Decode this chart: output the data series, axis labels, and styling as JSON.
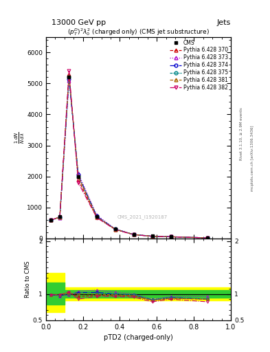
{
  "title_top": "13000 GeV pp",
  "title_right": "Jets",
  "plot_title": "$(p_T^D)^2\\lambda_0^2$ (charged only) (CMS jet substructure)",
  "xlabel": "pTD2 (charged-only)",
  "watermark": "CMS_2021_I1920187",
  "right_label1": "Rivet 3.1.10, ≥ 2.9M events",
  "right_label2": "mcplots.cern.ch [arXiv:1306.3436]",
  "x_data": [
    0.025,
    0.075,
    0.125,
    0.175,
    0.275,
    0.375,
    0.475,
    0.575,
    0.675,
    0.875
  ],
  "cms_data": [
    600,
    700,
    5200,
    2000,
    700,
    300,
    130,
    80,
    60,
    20
  ],
  "pythia_370": [
    590,
    690,
    5300,
    1900,
    680,
    290,
    125,
    70,
    55,
    18
  ],
  "pythia_373": [
    590,
    670,
    5100,
    2100,
    750,
    310,
    130,
    72,
    57,
    19
  ],
  "pythia_374": [
    590,
    680,
    5150,
    2050,
    720,
    300,
    127,
    71,
    56,
    18
  ],
  "pythia_375": [
    590,
    685,
    5200,
    2000,
    700,
    300,
    128,
    71,
    56,
    18
  ],
  "pythia_381": [
    590,
    690,
    5250,
    2000,
    695,
    295,
    126,
    70,
    55,
    18
  ],
  "pythia_382": [
    590,
    690,
    5400,
    1800,
    670,
    285,
    122,
    68,
    54,
    17
  ],
  "yticks_main": [
    0,
    1000,
    2000,
    3000,
    4000,
    5000,
    6000
  ],
  "ylim_main": [
    0,
    6500
  ],
  "ylim_ratio": [
    0.5,
    2.05
  ],
  "yticks_ratio": [
    0.5,
    1.0,
    2.0
  ],
  "xlim": [
    0.0,
    1.0
  ],
  "colors": {
    "cms": "#000000",
    "370": "#cc0000",
    "373": "#aa00cc",
    "374": "#0000cc",
    "375": "#008888",
    "381": "#aa6600",
    "382": "#cc0066"
  }
}
